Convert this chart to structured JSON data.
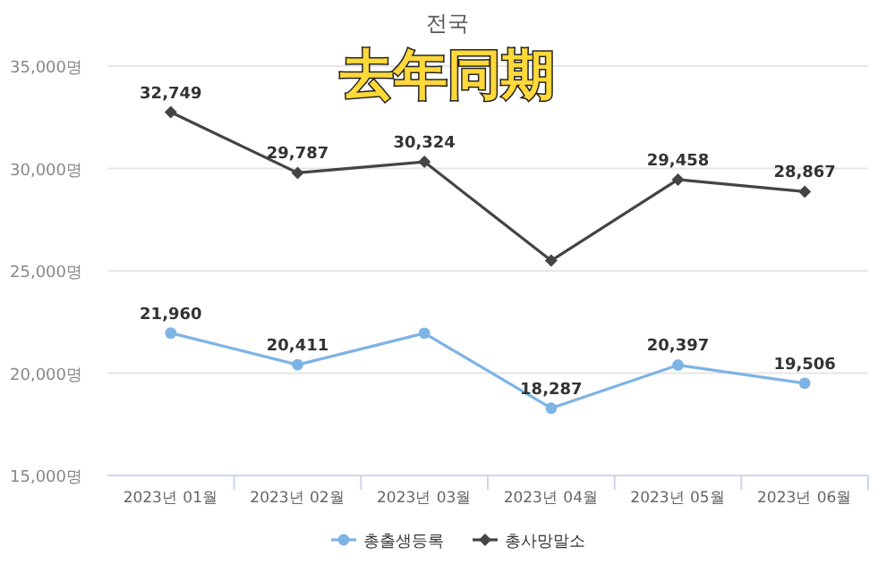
{
  "chart_data": {
    "type": "line",
    "title": "전국",
    "subtitle": "去年同期",
    "categories": [
      "2023년 01월",
      "2023년 02월",
      "2023년 03월",
      "2023년 04월",
      "2023년 05월",
      "2023년 06월"
    ],
    "series": [
      {
        "name": "총출생등록",
        "color": "#7eb3e6",
        "marker": "circle",
        "values": [
          21960,
          20411,
          21950,
          18287,
          20397,
          19506
        ],
        "value_labels": [
          "21,960",
          "20,411",
          null,
          "18,287",
          "20,397",
          "19,506"
        ]
      },
      {
        "name": "총사망말소",
        "color": "#444444",
        "marker": "diamond",
        "values": [
          32749,
          29787,
          30324,
          25500,
          29458,
          28867
        ],
        "value_labels": [
          "32,749",
          "29,787",
          "30,324",
          null,
          "29,458",
          "28,867"
        ]
      }
    ],
    "ylim": [
      15000,
      35000
    ],
    "yticks": [
      {
        "value": 15000,
        "label": "15,000명"
      },
      {
        "value": 20000,
        "label": "20,000명"
      },
      {
        "value": 25000,
        "label": "25,000명"
      },
      {
        "value": 30000,
        "label": "30,000명"
      },
      {
        "value": 35000,
        "label": "35,000명"
      }
    ],
    "grid": "y",
    "legend": "bottom",
    "line_style": "solid"
  }
}
